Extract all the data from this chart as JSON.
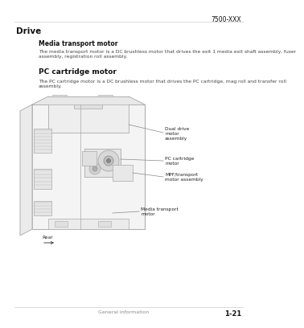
{
  "bg_color": "#ffffff",
  "page_header_right": "7500-XXX",
  "header_color": "#111111",
  "body_text_color": "#444444",
  "diagram_line_color": "#aaaaaa",
  "label_color": "#222222",
  "section_title": "Drive",
  "subsection1_title": "Media transport motor",
  "subsection1_body": "The media transport motor is a DC brushless motor that drives the exit 1 media exit shaft assembly, fuser\nassembly, registration roll assembly.",
  "subsection2_title": "PC cartridge motor",
  "subsection2_body": "The PC cartridge motor is a DC brushless motor that drives the PC cartridge, mag roll and transfer roll\nassembly.",
  "label_dual_drive": "Dual drive\nmotor\nassembly",
  "label_pc_cartridge": "PC cartridge\nmotor",
  "label_mpf": "MPF/transport\nmotor assembly",
  "label_media": "Media transport\nmotor",
  "label_rear": "Rear",
  "footer_left": "General information",
  "footer_right": "1-21"
}
